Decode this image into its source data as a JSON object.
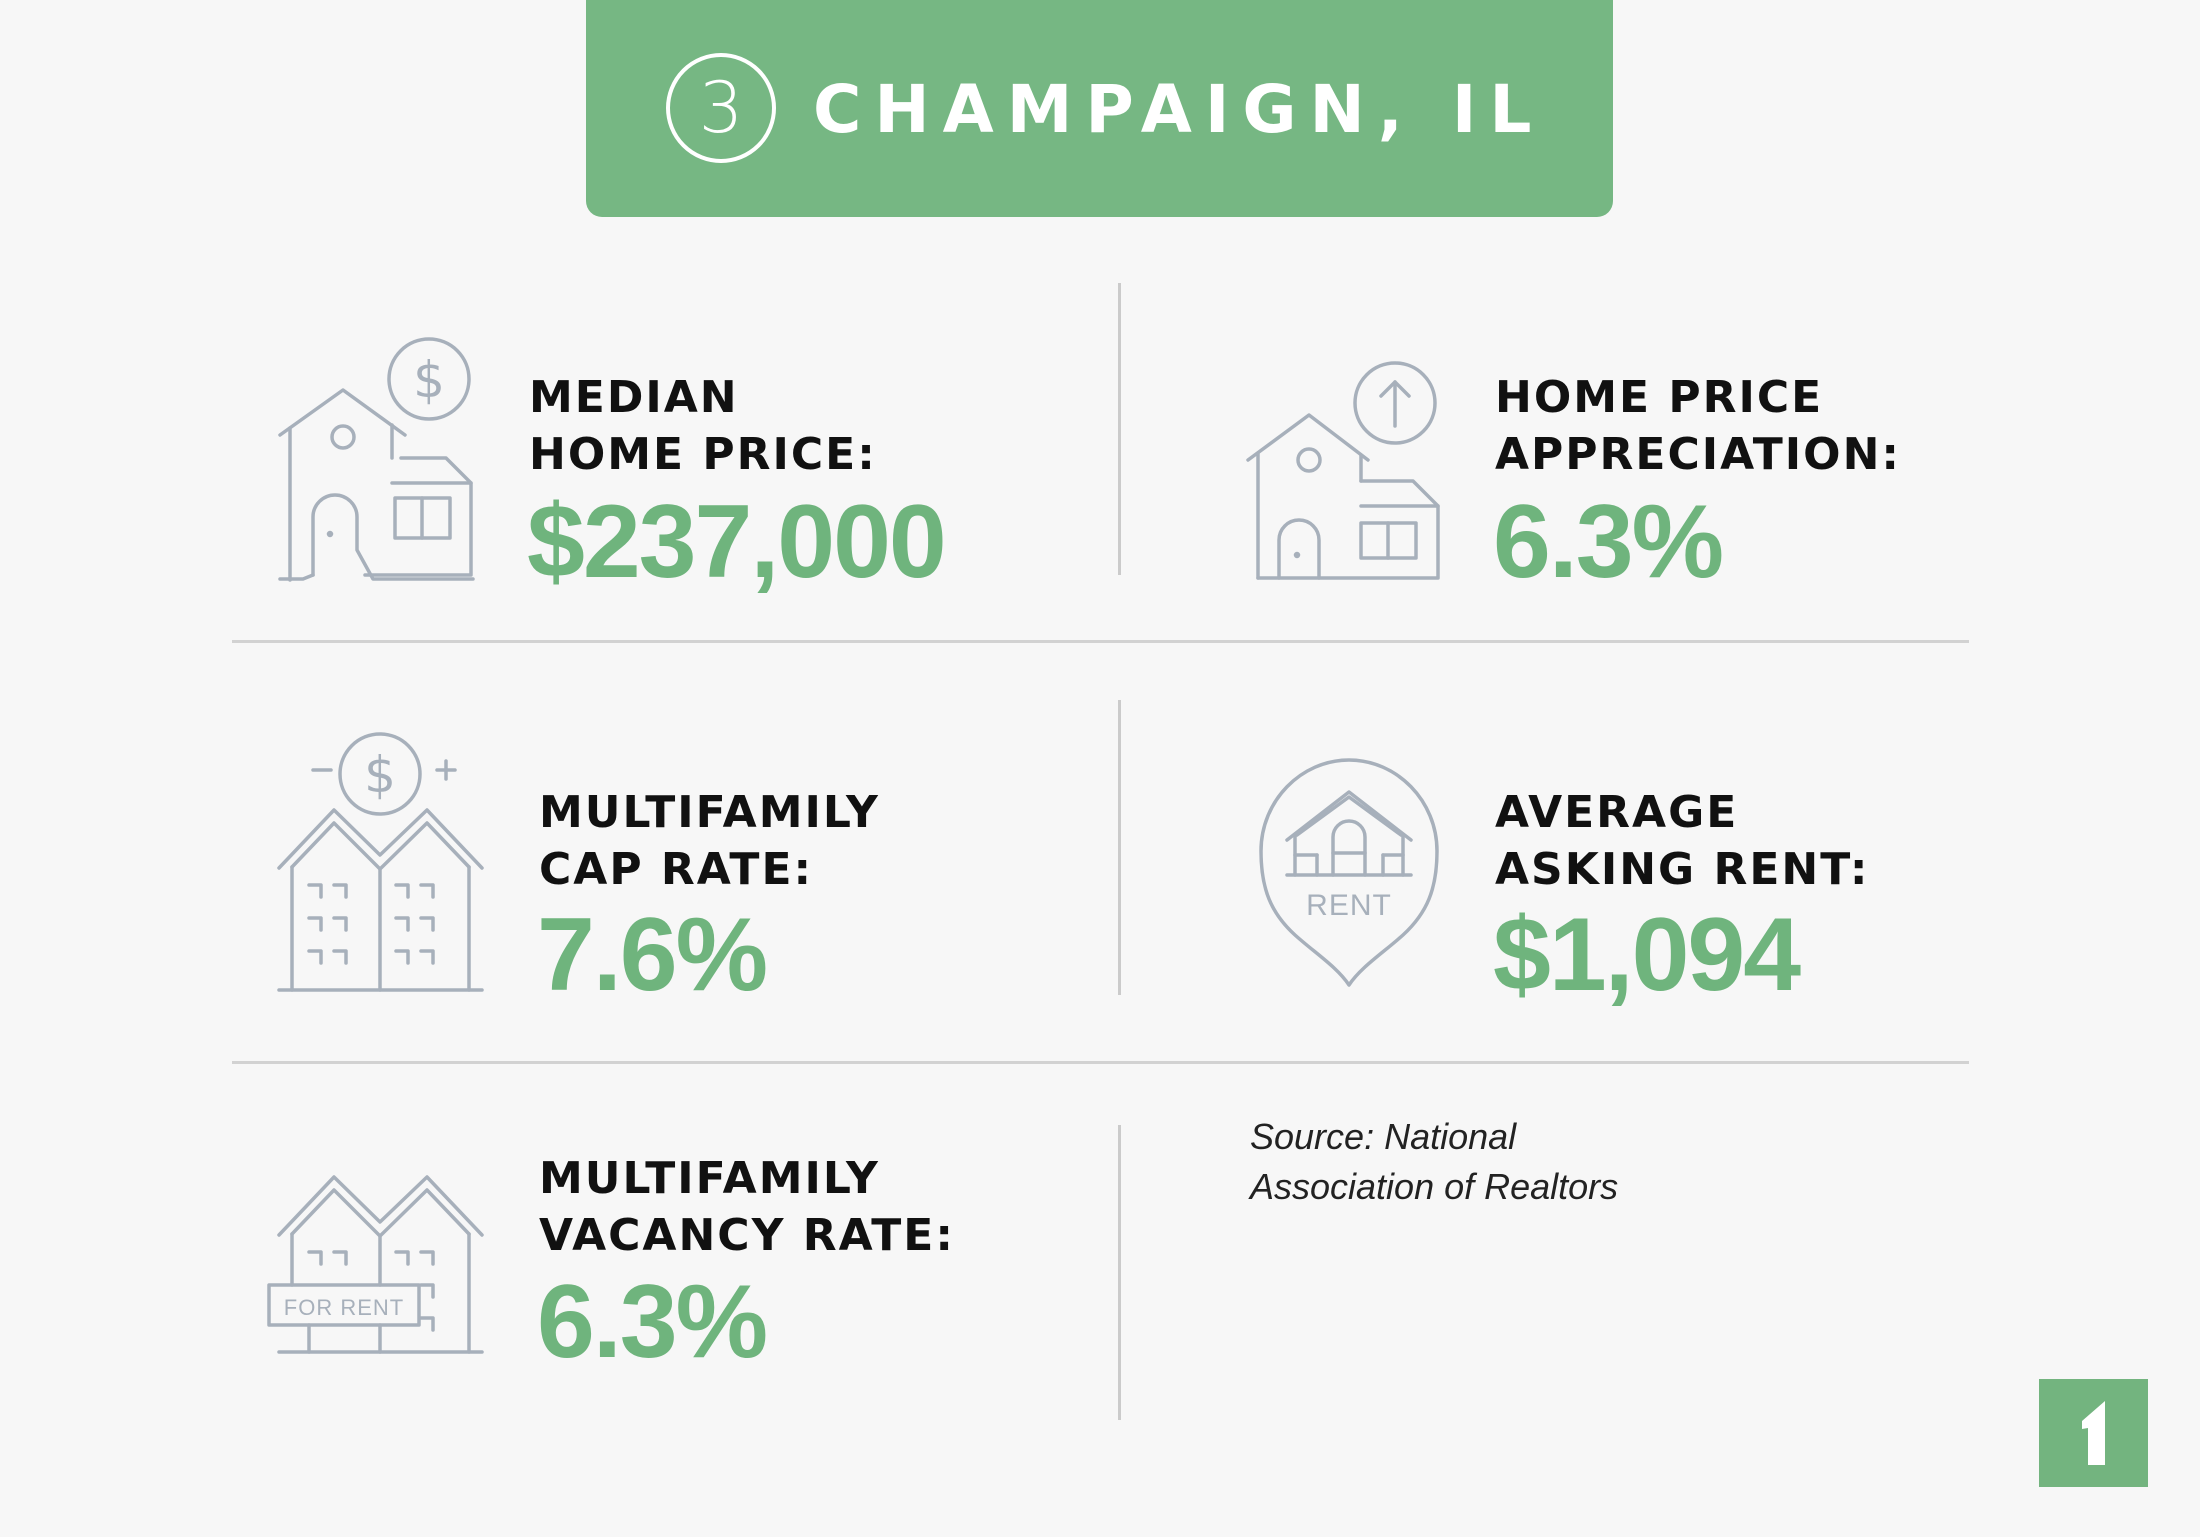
{
  "header": {
    "rank": "3",
    "title": "CHAMPAIGN, IL"
  },
  "stats": {
    "median_home_price": {
      "label_line1": "MEDIAN",
      "label_line2": "HOME PRICE:",
      "value": "$237,000"
    },
    "home_price_appreciation": {
      "label_line1": "HOME PRICE",
      "label_line2": "APPRECIATION:",
      "value": "6.3%"
    },
    "multifamily_cap_rate": {
      "label_line1": "MULTIFAMILY",
      "label_line2": "CAP RATE:",
      "value": "7.6%"
    },
    "average_asking_rent": {
      "label_line1": "AVERAGE",
      "label_line2": "ASKING RENT:",
      "value": "$1,094"
    },
    "multifamily_vacancy_rate": {
      "label_line1": "MULTIFAMILY",
      "label_line2": "VACANCY RATE:",
      "value": "6.3%"
    }
  },
  "icons": {
    "median_home_price": "house-dollar-icon",
    "home_price_appreciation": "house-arrow-up-icon",
    "multifamily_cap_rate": "apartment-dollar-icon",
    "average_asking_rent": "rent-pin-icon",
    "multifamily_vacancy_rate": "apartment-for-rent-icon",
    "rent_pin_text": "RENT",
    "for_rent_sign_text": "FOR RENT"
  },
  "source": {
    "line1": "Source: National",
    "line2": "Association of Realtors"
  },
  "colors": {
    "accent_green": "#76b783",
    "value_green": "#6fb47d",
    "icon_gray": "#a7b0bb",
    "divider_gray": "#d2d2d2",
    "background": "#f7f7f7"
  }
}
